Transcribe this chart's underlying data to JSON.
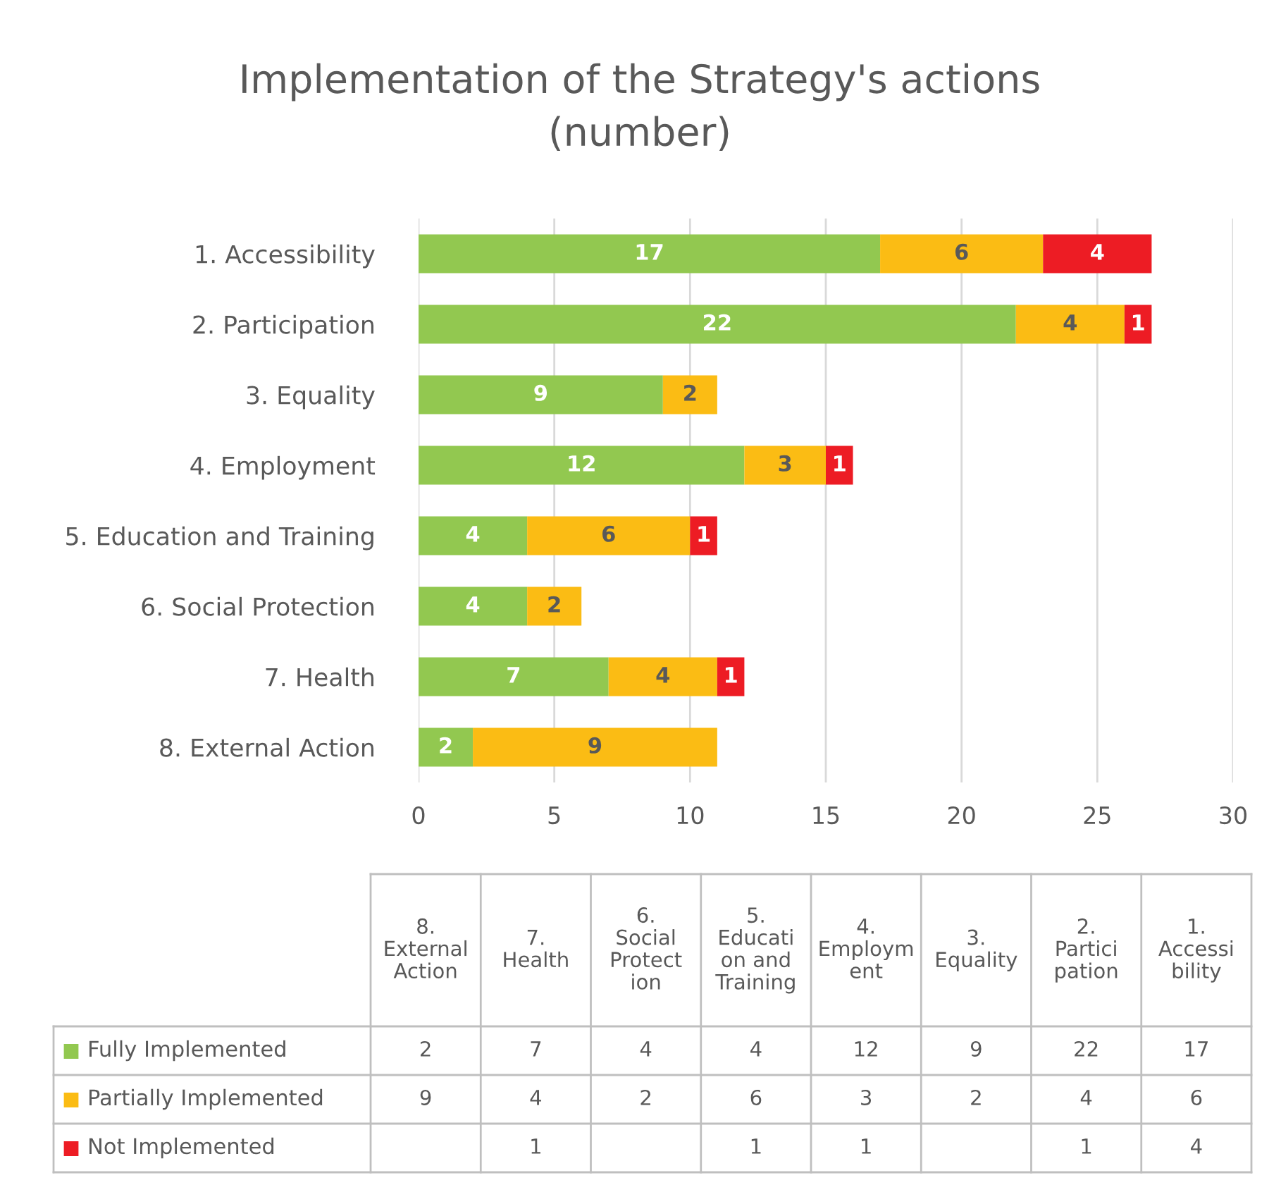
{
  "chart_data": [
    {
      "type": "bar",
      "orientation": "horizontal",
      "stacked": true,
      "title": "Implementation of the Strategy's actions (number)",
      "categories": [
        "1. Accessibility",
        "2. Participation",
        "3. Equality",
        "4. Employment",
        "5. Education and Training",
        "6. Social Protection",
        "7. Health",
        "8. External Action"
      ],
      "series": [
        {
          "name": "Fully Implemented",
          "color": "#92c850",
          "values": [
            17,
            22,
            9,
            12,
            4,
            4,
            7,
            2
          ]
        },
        {
          "name": "Partially Implemented",
          "color": "#fbbc14",
          "values": [
            6,
            4,
            2,
            3,
            6,
            2,
            4,
            9
          ]
        },
        {
          "name": "Not Implemented",
          "color": "#ed1c24",
          "values": [
            4,
            1,
            null,
            1,
            1,
            null,
            1,
            null
          ]
        }
      ],
      "xlim": [
        0,
        30
      ],
      "xticks": [
        0,
        5,
        10,
        15,
        20,
        25,
        30
      ],
      "grid": "x",
      "data_labels": true,
      "legend": "bottom"
    },
    {
      "type": "heatmap",
      "categories": [
        "8. External Action",
        "7. Health",
        "6. Social Protection",
        "5. Education and Training",
        "4. Employment",
        "3. Equality",
        "2. Participation",
        "1. Accessibility"
      ],
      "y_categories": [
        null,
        null,
        null
      ],
      "cells": [
        [
          2,
          7,
          4,
          4,
          12,
          9,
          22,
          17
        ],
        [
          9,
          4,
          2,
          6,
          3,
          2,
          4,
          6
        ],
        [
          null,
          1,
          null,
          1,
          1,
          null,
          1,
          4
        ]
      ],
      "data_labels": true
    }
  ]
}
